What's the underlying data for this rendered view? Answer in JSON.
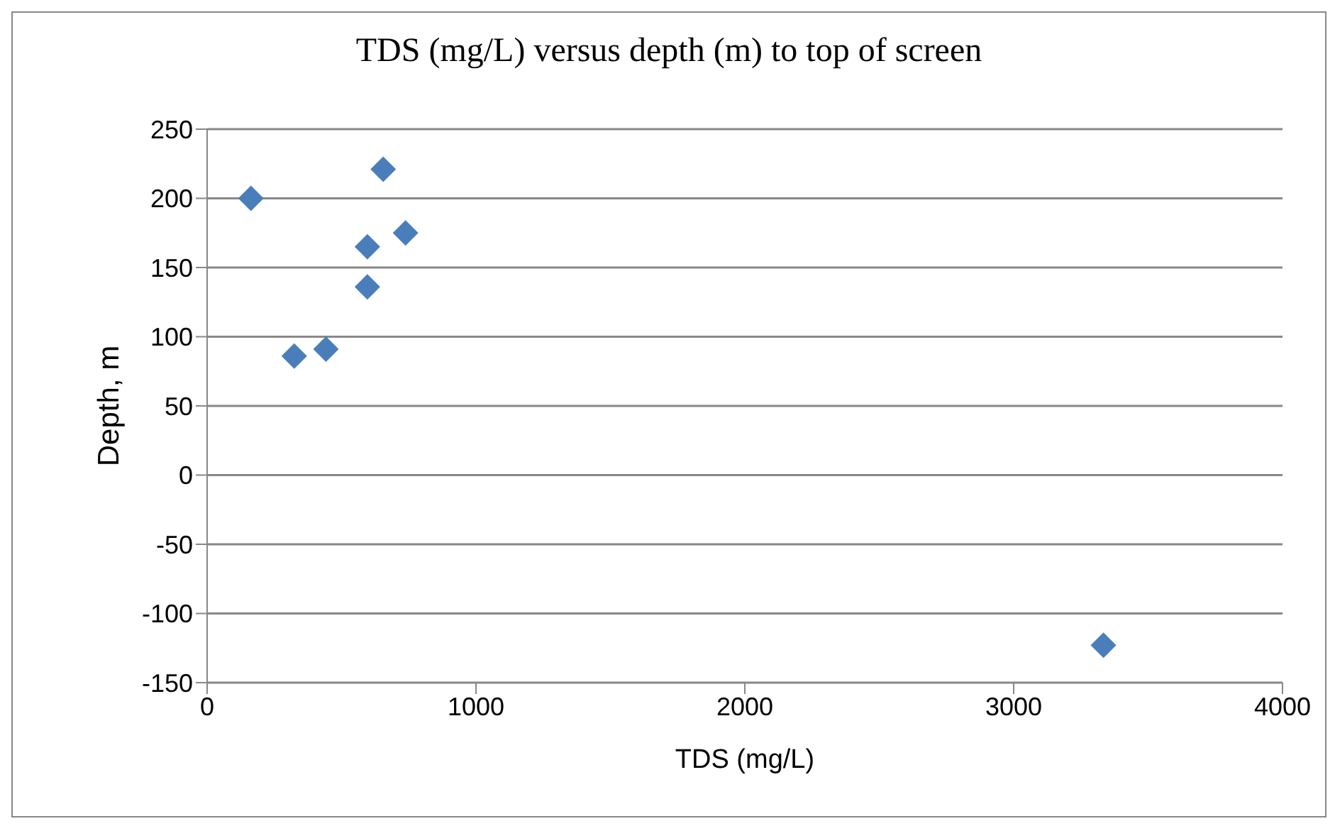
{
  "chart_data": {
    "type": "scatter",
    "title": "TDS (mg/L) versus depth (m) to top of screen",
    "xlabel": "TDS  (mg/L)",
    "ylabel": "Depth, m",
    "x": [
      163,
      655,
      738,
      596,
      596,
      324,
      442,
      3334
    ],
    "series": [
      {
        "color": "#4a7ebb",
        "values": [
          200,
          221,
          175,
          165,
          136,
          86,
          91,
          -123
        ]
      }
    ],
    "xlim": [
      0,
      4000
    ],
    "xticks": [
      0,
      1000,
      2000,
      3000,
      4000
    ],
    "ylim": [
      -150,
      250
    ],
    "yticks": [
      -150,
      -100,
      -50,
      0,
      50,
      100,
      150,
      200,
      250
    ],
    "grid": "y",
    "marker": "diamond"
  }
}
